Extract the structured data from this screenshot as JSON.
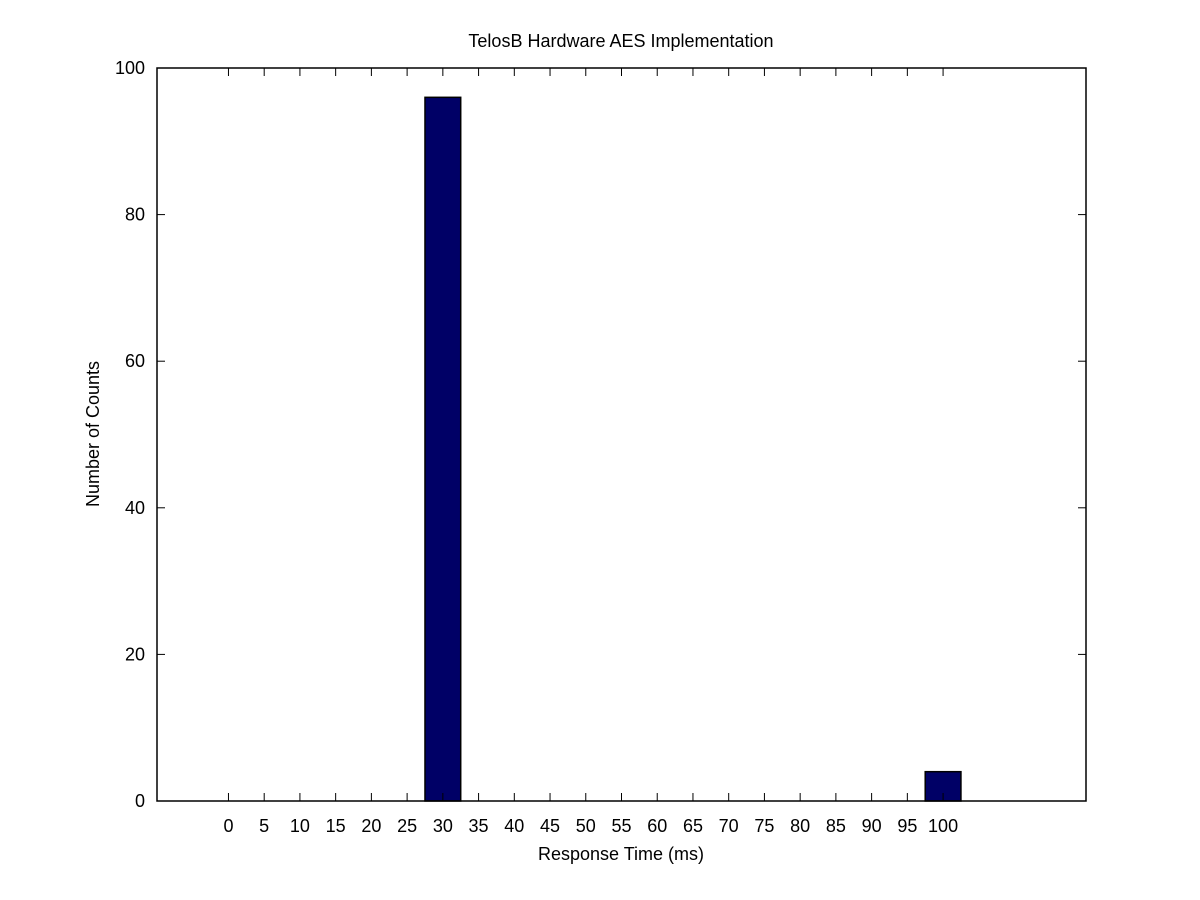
{
  "chart_data": {
    "type": "bar",
    "title": "TelosB Hardware AES Implementation",
    "xlabel": "Response Time (ms)",
    "ylabel": "Number of Counts",
    "categories": [
      "0",
      "5",
      "10",
      "15",
      "20",
      "25",
      "30",
      "35",
      "40",
      "45",
      "50",
      "55",
      "60",
      "65",
      "70",
      "75",
      "80",
      "85",
      "90",
      "95",
      "100"
    ],
    "values": [
      0,
      0,
      0,
      0,
      0,
      0,
      96,
      0,
      0,
      0,
      0,
      0,
      0,
      0,
      0,
      0,
      0,
      0,
      0,
      0,
      4
    ],
    "xlim": [
      -10,
      120
    ],
    "ylim": [
      0,
      100
    ],
    "yticks": [
      0,
      20,
      40,
      60,
      80,
      100
    ],
    "bar_color": "#000066",
    "grid": false
  }
}
